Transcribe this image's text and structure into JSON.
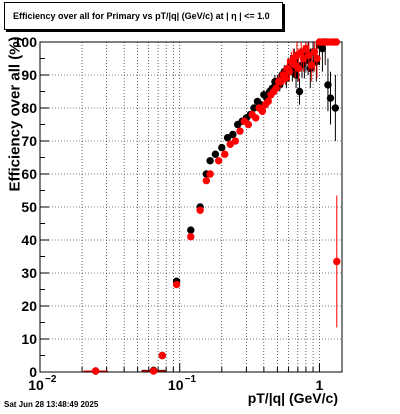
{
  "header": {
    "title": "Efficiency over all for Primary vs pT/|q| (GeV/c) at |  η  | <= 1.0"
  },
  "footer": {
    "timestamp": "Sat Jun 28 13:48:49 2025"
  },
  "chart_data": {
    "type": "scatter",
    "title": "Efficiency over all for Primary vs pT/|q| (GeV/c) at |  η  | <= 1.0",
    "xlabel": "pT/|q| (GeV/c)",
    "ylabel": "Efficiency over all (%)",
    "xscale": "log",
    "xlim": [
      0.01,
      1.45
    ],
    "ylim": [
      0,
      100
    ],
    "grid": true,
    "y_ticks": [
      "0",
      "10",
      "20",
      "30",
      "40",
      "50",
      "60",
      "70",
      "80",
      "90",
      "100"
    ],
    "x_ticks": [
      {
        "value": 0.01,
        "base": "10",
        "exp": "−2"
      },
      {
        "value": 0.1,
        "base": "10",
        "exp": "−1"
      },
      {
        "value": 1,
        "base": "1",
        "exp": ""
      }
    ],
    "series": [
      {
        "color": "#000000",
        "points": [
          [
            0.025,
            0.3
          ],
          [
            0.065,
            0.5
          ],
          [
            0.075,
            5
          ],
          [
            0.095,
            27.5
          ],
          [
            0.12,
            43
          ],
          [
            0.14,
            50
          ],
          [
            0.155,
            60
          ],
          [
            0.165,
            64
          ],
          [
            0.18,
            66
          ],
          [
            0.2,
            68
          ],
          [
            0.22,
            71
          ],
          [
            0.24,
            72
          ],
          [
            0.26,
            75
          ],
          [
            0.28,
            76
          ],
          [
            0.3,
            77
          ],
          [
            0.32,
            78
          ],
          [
            0.34,
            80
          ],
          [
            0.36,
            82
          ],
          [
            0.38,
            81
          ],
          [
            0.4,
            84
          ],
          [
            0.42,
            83
          ],
          [
            0.44,
            85
          ],
          [
            0.46,
            86
          ],
          [
            0.48,
            88
          ],
          [
            0.5,
            88
          ],
          [
            0.52,
            87
          ],
          [
            0.54,
            90
          ],
          [
            0.56,
            91
          ],
          [
            0.58,
            89
          ],
          [
            0.6,
            92
          ],
          [
            0.62,
            93
          ],
          [
            0.64,
            91
          ],
          [
            0.66,
            94
          ],
          [
            0.68,
            90
          ],
          [
            0.7,
            92
          ],
          [
            0.72,
            85
          ],
          [
            0.75,
            93
          ],
          [
            0.78,
            94
          ],
          [
            0.8,
            96
          ],
          [
            0.83,
            95
          ],
          [
            0.86,
            92
          ],
          [
            0.9,
            97
          ],
          [
            0.95,
            94
          ],
          [
            1.0,
            99
          ],
          [
            1.05,
            98
          ],
          [
            1.1,
            100
          ],
          [
            1.15,
            87
          ],
          [
            1.2,
            83
          ],
          [
            1.3,
            80
          ]
        ],
        "errors": [
          0,
          0,
          0.5,
          1,
          1,
          1,
          1,
          1,
          1,
          1,
          1,
          1,
          1,
          1,
          1,
          1,
          1,
          1,
          1,
          1.5,
          1.5,
          1.5,
          1.5,
          2,
          2,
          2,
          2,
          2,
          3,
          3,
          3,
          3,
          4,
          4,
          4,
          4,
          4,
          5,
          5,
          5,
          6,
          6,
          6,
          6,
          7,
          7,
          8,
          8,
          10
        ]
      },
      {
        "color": "#ff0000",
        "points": [
          [
            0.025,
            0.3
          ],
          [
            0.065,
            0.3
          ],
          [
            0.075,
            5
          ],
          [
            0.095,
            26.5
          ],
          [
            0.12,
            41
          ],
          [
            0.14,
            49
          ],
          [
            0.155,
            58
          ],
          [
            0.165,
            60
          ],
          [
            0.19,
            64
          ],
          [
            0.21,
            66
          ],
          [
            0.23,
            69
          ],
          [
            0.25,
            70
          ],
          [
            0.27,
            73
          ],
          [
            0.29,
            76
          ],
          [
            0.31,
            75
          ],
          [
            0.33,
            78
          ],
          [
            0.35,
            77
          ],
          [
            0.37,
            80
          ],
          [
            0.39,
            79
          ],
          [
            0.41,
            81
          ],
          [
            0.43,
            82
          ],
          [
            0.45,
            84
          ],
          [
            0.47,
            85
          ],
          [
            0.49,
            86
          ],
          [
            0.51,
            88
          ],
          [
            0.53,
            88
          ],
          [
            0.55,
            90
          ],
          [
            0.57,
            89
          ],
          [
            0.59,
            92
          ],
          [
            0.61,
            91
          ],
          [
            0.63,
            94
          ],
          [
            0.65,
            95
          ],
          [
            0.67,
            93
          ],
          [
            0.69,
            96
          ],
          [
            0.71,
            92
          ],
          [
            0.74,
            97
          ],
          [
            0.77,
            95
          ],
          [
            0.8,
            98
          ],
          [
            0.84,
            96
          ],
          [
            0.88,
            93
          ],
          [
            0.92,
            97
          ],
          [
            0.96,
            95
          ],
          [
            1.0,
            100
          ],
          [
            1.05,
            100
          ],
          [
            1.1,
            100
          ],
          [
            1.15,
            100
          ],
          [
            1.22,
            100
          ],
          [
            1.28,
            100
          ],
          [
            1.32,
            100
          ],
          [
            1.33,
            33.5
          ]
        ],
        "errors": [
          0,
          0,
          0.5,
          1,
          1,
          1,
          1,
          1,
          1,
          1,
          1,
          1,
          1,
          1,
          1,
          1,
          1,
          1,
          1,
          1.5,
          1.5,
          1.5,
          1.5,
          2,
          2,
          2,
          2,
          2,
          3,
          3,
          3,
          3,
          4,
          4,
          4,
          4,
          4,
          5,
          5,
          5,
          6,
          6,
          0,
          0,
          0,
          0,
          0,
          0,
          0,
          20
        ]
      }
    ]
  }
}
